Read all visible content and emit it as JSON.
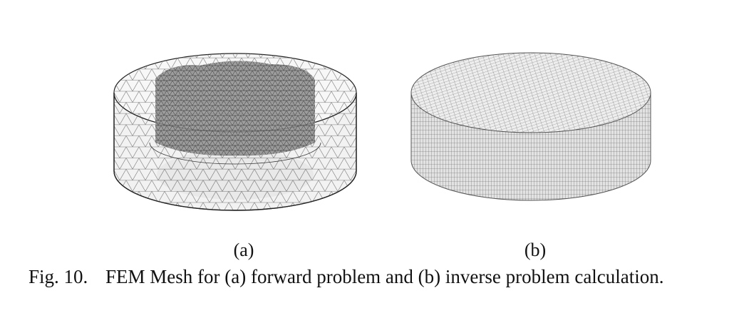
{
  "figure": {
    "subfigures": [
      {
        "label": "(a)",
        "mesh_type": "tetrahedral"
      },
      {
        "label": "(b)",
        "mesh_type": "structured-quad"
      }
    ],
    "caption": {
      "number": "Fig. 10.",
      "text": "FEM Mesh for (a) forward problem and (b) inverse problem calculation."
    }
  }
}
